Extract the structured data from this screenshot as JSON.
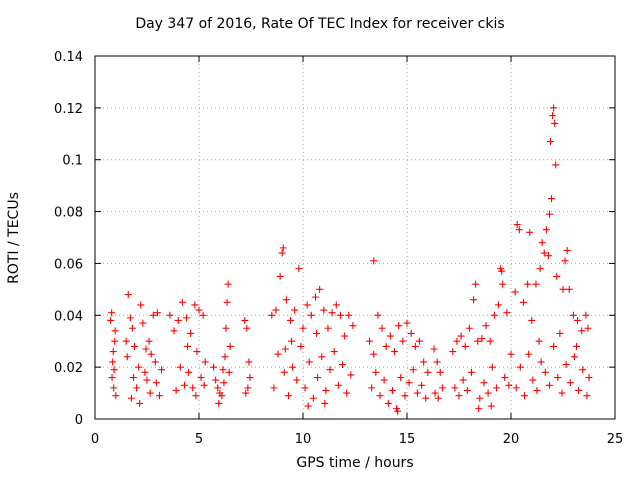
{
  "chart_data": {
    "type": "scatter",
    "title": "Day 347 of 2016, Rate Of TEC Index for receiver ckis",
    "xlabel": "GPS time / hours",
    "ylabel": "ROTI / TECUs",
    "xlim": [
      0,
      25
    ],
    "ylim": [
      0,
      0.14
    ],
    "xticks": [
      0,
      5,
      10,
      15,
      20,
      25
    ],
    "yticks": [
      0,
      0.02,
      0.04,
      0.06,
      0.08,
      0.1,
      0.12,
      0.14
    ],
    "ytick_labels": [
      "0",
      "0.02",
      "0.04",
      "0.06",
      "0.08",
      "0.1",
      "0.12",
      "0.14"
    ],
    "grid": true,
    "marker": "+",
    "color": "#ff0000",
    "series": [
      {
        "name": "ROTI",
        "points": [
          [
            0.75,
            0.038
          ],
          [
            0.8,
            0.041
          ],
          [
            0.85,
            0.022
          ],
          [
            0.9,
            0.012
          ],
          [
            0.95,
            0.03
          ],
          [
            1.0,
            0.009
          ],
          [
            0.82,
            0.016
          ],
          [
            0.88,
            0.026
          ],
          [
            0.92,
            0.019
          ],
          [
            0.97,
            0.034
          ],
          [
            1.5,
            0.03
          ],
          [
            1.6,
            0.048
          ],
          [
            1.7,
            0.039
          ],
          [
            1.8,
            0.035
          ],
          [
            1.9,
            0.028
          ],
          [
            2.0,
            0.012
          ],
          [
            2.1,
            0.02
          ],
          [
            2.2,
            0.044
          ],
          [
            2.3,
            0.037
          ],
          [
            2.4,
            0.018
          ],
          [
            2.5,
            0.015
          ],
          [
            2.6,
            0.03
          ],
          [
            2.7,
            0.025
          ],
          [
            2.8,
            0.04
          ],
          [
            2.9,
            0.022
          ],
          [
            3.0,
            0.041
          ],
          [
            3.1,
            0.009
          ],
          [
            3.2,
            0.019
          ],
          [
            1.75,
            0.008
          ],
          [
            2.15,
            0.006
          ],
          [
            2.65,
            0.01
          ],
          [
            2.95,
            0.014
          ],
          [
            1.55,
            0.024
          ],
          [
            1.85,
            0.016
          ],
          [
            2.45,
            0.027
          ],
          [
            3.6,
            0.04
          ],
          [
            3.8,
            0.034
          ],
          [
            4.0,
            0.038
          ],
          [
            4.2,
            0.045
          ],
          [
            4.4,
            0.039
          ],
          [
            4.6,
            0.033
          ],
          [
            4.8,
            0.044
          ],
          [
            5.0,
            0.042
          ],
          [
            5.2,
            0.04
          ],
          [
            5.3,
            0.022
          ],
          [
            4.1,
            0.02
          ],
          [
            4.3,
            0.013
          ],
          [
            4.5,
            0.018
          ],
          [
            4.7,
            0.012
          ],
          [
            4.9,
            0.026
          ],
          [
            5.1,
            0.016
          ],
          [
            3.9,
            0.011
          ],
          [
            4.45,
            0.028
          ],
          [
            4.85,
            0.009
          ],
          [
            5.25,
            0.013
          ],
          [
            5.7,
            0.02
          ],
          [
            5.8,
            0.015
          ],
          [
            5.9,
            0.012
          ],
          [
            6.0,
            0.01
          ],
          [
            6.1,
            0.009
          ],
          [
            6.2,
            0.014
          ],
          [
            6.3,
            0.035
          ],
          [
            6.35,
            0.045
          ],
          [
            6.4,
            0.052
          ],
          [
            6.5,
            0.028
          ],
          [
            6.45,
            0.018
          ],
          [
            6.25,
            0.024
          ],
          [
            5.95,
            0.006
          ],
          [
            6.15,
            0.019
          ],
          [
            7.2,
            0.038
          ],
          [
            7.3,
            0.035
          ],
          [
            7.4,
            0.022
          ],
          [
            7.35,
            0.012
          ],
          [
            7.25,
            0.01
          ],
          [
            7.45,
            0.016
          ],
          [
            8.5,
            0.04
          ],
          [
            8.7,
            0.042
          ],
          [
            8.9,
            0.055
          ],
          [
            9.0,
            0.064
          ],
          [
            9.05,
            0.066
          ],
          [
            9.2,
            0.046
          ],
          [
            9.4,
            0.038
          ],
          [
            9.6,
            0.042
          ],
          [
            9.8,
            0.058
          ],
          [
            10.0,
            0.035
          ],
          [
            10.2,
            0.044
          ],
          [
            10.4,
            0.04
          ],
          [
            10.6,
            0.047
          ],
          [
            10.8,
            0.05
          ],
          [
            11.0,
            0.042
          ],
          [
            11.2,
            0.035
          ],
          [
            11.4,
            0.041
          ],
          [
            11.6,
            0.044
          ],
          [
            11.8,
            0.04
          ],
          [
            12.0,
            0.032
          ],
          [
            12.2,
            0.04
          ],
          [
            12.4,
            0.036
          ],
          [
            8.6,
            0.012
          ],
          [
            8.8,
            0.025
          ],
          [
            9.1,
            0.018
          ],
          [
            9.3,
            0.009
          ],
          [
            9.5,
            0.02
          ],
          [
            9.7,
            0.015
          ],
          [
            9.9,
            0.028
          ],
          [
            10.1,
            0.012
          ],
          [
            10.3,
            0.022
          ],
          [
            10.5,
            0.008
          ],
          [
            10.7,
            0.016
          ],
          [
            10.9,
            0.024
          ],
          [
            11.1,
            0.011
          ],
          [
            11.3,
            0.019
          ],
          [
            11.5,
            0.026
          ],
          [
            11.7,
            0.013
          ],
          [
            11.9,
            0.021
          ],
          [
            12.1,
            0.01
          ],
          [
            12.3,
            0.017
          ],
          [
            9.45,
            0.03
          ],
          [
            10.25,
            0.005
          ],
          [
            11.05,
            0.006
          ],
          [
            10.65,
            0.033
          ],
          [
            9.15,
            0.027
          ],
          [
            13.4,
            0.061
          ],
          [
            13.2,
            0.03
          ],
          [
            13.4,
            0.025
          ],
          [
            13.6,
            0.04
          ],
          [
            13.8,
            0.035
          ],
          [
            14.0,
            0.028
          ],
          [
            14.2,
            0.032
          ],
          [
            14.4,
            0.026
          ],
          [
            14.6,
            0.036
          ],
          [
            14.8,
            0.03
          ],
          [
            15.0,
            0.037
          ],
          [
            15.2,
            0.033
          ],
          [
            15.4,
            0.028
          ],
          [
            15.6,
            0.03
          ],
          [
            15.8,
            0.022
          ],
          [
            16.0,
            0.018
          ],
          [
            13.3,
            0.012
          ],
          [
            13.5,
            0.018
          ],
          [
            13.7,
            0.009
          ],
          [
            13.9,
            0.015
          ],
          [
            14.1,
            0.006
          ],
          [
            14.3,
            0.011
          ],
          [
            14.5,
            0.004
          ],
          [
            14.7,
            0.016
          ],
          [
            14.9,
            0.009
          ],
          [
            15.1,
            0.014
          ],
          [
            15.3,
            0.019
          ],
          [
            15.5,
            0.01
          ],
          [
            15.7,
            0.013
          ],
          [
            15.9,
            0.008
          ],
          [
            14.55,
            0.003
          ],
          [
            16.3,
            0.027
          ],
          [
            16.45,
            0.022
          ],
          [
            16.6,
            0.018
          ],
          [
            16.35,
            0.01
          ],
          [
            16.5,
            0.008
          ],
          [
            16.7,
            0.012
          ],
          [
            17.2,
            0.026
          ],
          [
            17.4,
            0.03
          ],
          [
            17.6,
            0.032
          ],
          [
            17.8,
            0.028
          ],
          [
            18.0,
            0.035
          ],
          [
            18.2,
            0.046
          ],
          [
            18.3,
            0.052
          ],
          [
            18.4,
            0.03
          ],
          [
            18.6,
            0.031
          ],
          [
            18.8,
            0.036
          ],
          [
            19.0,
            0.03
          ],
          [
            19.2,
            0.04
          ],
          [
            19.4,
            0.044
          ],
          [
            19.5,
            0.058
          ],
          [
            19.55,
            0.057
          ],
          [
            19.6,
            0.052
          ],
          [
            19.8,
            0.041
          ],
          [
            20.0,
            0.025
          ],
          [
            17.3,
            0.012
          ],
          [
            17.5,
            0.009
          ],
          [
            17.7,
            0.015
          ],
          [
            17.9,
            0.011
          ],
          [
            18.1,
            0.018
          ],
          [
            18.5,
            0.008
          ],
          [
            18.7,
            0.014
          ],
          [
            18.9,
            0.01
          ],
          [
            19.1,
            0.02
          ],
          [
            19.3,
            0.012
          ],
          [
            19.7,
            0.016
          ],
          [
            19.9,
            0.013
          ],
          [
            18.45,
            0.004
          ],
          [
            19.05,
            0.005
          ],
          [
            20.2,
            0.049
          ],
          [
            20.3,
            0.075
          ],
          [
            20.4,
            0.073
          ],
          [
            20.6,
            0.045
          ],
          [
            20.8,
            0.052
          ],
          [
            20.9,
            0.072
          ],
          [
            21.0,
            0.038
          ],
          [
            21.2,
            0.052
          ],
          [
            21.4,
            0.058
          ],
          [
            21.5,
            0.068
          ],
          [
            21.6,
            0.064
          ],
          [
            21.7,
            0.073
          ],
          [
            21.8,
            0.063
          ],
          [
            21.85,
            0.079
          ],
          [
            21.9,
            0.107
          ],
          [
            21.95,
            0.085
          ],
          [
            22.0,
            0.117
          ],
          [
            22.05,
            0.12
          ],
          [
            22.1,
            0.114
          ],
          [
            22.15,
            0.098
          ],
          [
            22.2,
            0.055
          ],
          [
            22.5,
            0.05
          ],
          [
            22.6,
            0.061
          ],
          [
            22.7,
            0.065
          ],
          [
            22.8,
            0.05
          ],
          [
            23.0,
            0.04
          ],
          [
            23.2,
            0.038
          ],
          [
            23.4,
            0.034
          ],
          [
            23.6,
            0.04
          ],
          [
            23.7,
            0.035
          ],
          [
            20.25,
            0.012
          ],
          [
            20.45,
            0.02
          ],
          [
            20.65,
            0.009
          ],
          [
            20.85,
            0.025
          ],
          [
            21.05,
            0.015
          ],
          [
            21.25,
            0.011
          ],
          [
            21.45,
            0.022
          ],
          [
            21.65,
            0.018
          ],
          [
            21.85,
            0.013
          ],
          [
            22.05,
            0.028
          ],
          [
            22.25,
            0.016
          ],
          [
            22.45,
            0.01
          ],
          [
            22.65,
            0.021
          ],
          [
            22.85,
            0.014
          ],
          [
            23.05,
            0.024
          ],
          [
            23.25,
            0.011
          ],
          [
            23.45,
            0.019
          ],
          [
            23.65,
            0.009
          ],
          [
            23.75,
            0.016
          ],
          [
            21.35,
            0.03
          ],
          [
            22.35,
            0.033
          ],
          [
            23.15,
            0.028
          ]
        ]
      }
    ]
  }
}
